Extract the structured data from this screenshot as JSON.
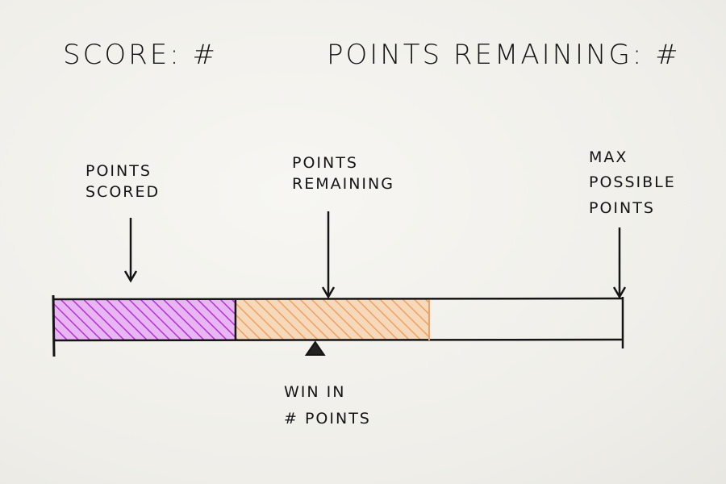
{
  "header": {
    "score_label": "SCORE: #",
    "points_remaining_label": "POINTS REMAINING: #"
  },
  "annotations": {
    "points_scored": "POINTS\nSCORED",
    "points_remaining": "POINTS\nREMAINING",
    "max_possible_points": "MAX\nPOSSIBLE\nPOINTS",
    "win_in_points": "WIN IN\n# POINTS"
  },
  "progress": {
    "scored_fraction": 0.32,
    "remaining_fraction": 0.34,
    "win_marker_fraction": 0.46
  },
  "colors": {
    "scored": "#b32fd6",
    "remaining": "#f0a060",
    "ink": "#151515"
  }
}
